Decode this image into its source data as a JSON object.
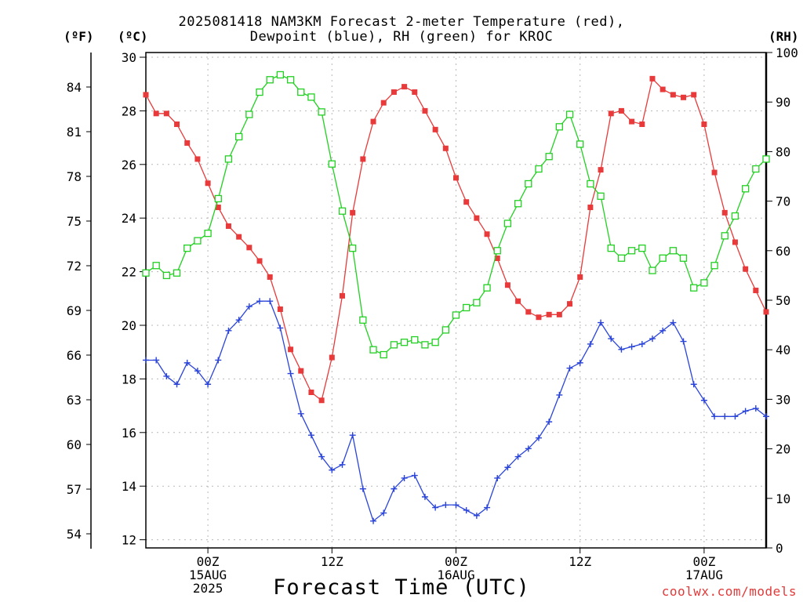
{
  "header": {
    "title_line1": "2025081418 NAM3KM Forecast 2-meter Temperature (red),",
    "title_line2": "Dewpoint (blue), RH (green) for KROC"
  },
  "units": {
    "f": "(ºF)",
    "c": "(ºC)",
    "rh": "(RH)"
  },
  "footer": {
    "xlabel": "Forecast Time (UTC)",
    "credit": "coolwx.com/models"
  },
  "chart_data": {
    "type": "line",
    "title": "2025081418 NAM3KM Forecast 2-meter Temperature (red), Dewpoint (blue), RH (green) for KROC",
    "xlabel": "Forecast Time (UTC)",
    "ylabel_left": "(ºC)",
    "ylabel_far_left": "(ºF)",
    "ylabel_right": "(RH)",
    "x_start_hour_utc": 18,
    "x_step_hours": 1,
    "xlim_hours": [
      0,
      60
    ],
    "x_tick_labels": [
      {
        "hour": 6,
        "lines": [
          "00Z",
          "15AUG",
          "2025"
        ]
      },
      {
        "hour": 18,
        "lines": [
          "12Z"
        ]
      },
      {
        "hour": 30,
        "lines": [
          "00Z",
          "16AUG"
        ]
      },
      {
        "hour": 42,
        "lines": [
          "12Z"
        ]
      },
      {
        "hour": 54,
        "lines": [
          "00Z",
          "17AUG"
        ]
      }
    ],
    "ylim_c": [
      11.6,
      30.1
    ],
    "yticks_c": [
      12,
      14,
      16,
      18,
      20,
      22,
      24,
      26,
      28,
      30
    ],
    "yticks_f": [
      54,
      57,
      60,
      63,
      66,
      69,
      72,
      75,
      78,
      81,
      84
    ],
    "ylim_rh": [
      0,
      100
    ],
    "yticks_rh": [
      0,
      10,
      20,
      30,
      40,
      50,
      60,
      70,
      80,
      90,
      100
    ],
    "grid": true,
    "series": [
      {
        "name": "Temperature",
        "color": "#e83a3a",
        "marker": "filled-square",
        "axis": "c",
        "values": [
          28.6,
          27.9,
          27.9,
          27.5,
          26.8,
          26.2,
          25.3,
          24.4,
          23.7,
          23.3,
          22.9,
          22.4,
          21.8,
          20.6,
          19.1,
          18.3,
          17.5,
          17.2,
          18.8,
          21.1,
          24.2,
          26.2,
          27.6,
          28.3,
          28.7,
          28.9,
          28.7,
          28.0,
          27.3,
          26.6,
          25.5,
          24.6,
          24.0,
          23.4,
          22.5,
          21.5,
          20.9,
          20.5,
          20.3,
          20.4,
          20.4,
          20.8,
          21.8,
          24.4,
          25.8,
          27.9,
          28.0,
          27.6,
          27.5,
          29.2,
          28.8,
          28.6,
          28.5,
          28.6,
          27.5,
          25.7,
          24.2,
          23.1,
          22.1,
          21.3,
          20.5
        ]
      },
      {
        "name": "Dewpoint",
        "color": "#2a44d9",
        "marker": "plus",
        "axis": "c",
        "values": [
          18.7,
          18.7,
          18.1,
          17.8,
          18.6,
          18.3,
          17.8,
          18.7,
          19.8,
          20.2,
          20.7,
          20.9,
          20.9,
          19.9,
          18.2,
          16.7,
          15.9,
          15.1,
          14.6,
          14.8,
          15.9,
          13.9,
          12.7,
          13.0,
          13.9,
          14.3,
          14.4,
          13.6,
          13.2,
          13.3,
          13.3,
          13.1,
          12.9,
          13.2,
          14.3,
          14.7,
          15.1,
          15.4,
          15.8,
          16.4,
          17.4,
          18.4,
          18.6,
          19.3,
          20.1,
          19.5,
          19.1,
          19.2,
          19.3,
          19.5,
          19.8,
          20.1,
          19.4,
          17.8,
          17.2,
          16.6,
          16.6,
          16.6,
          16.8,
          16.9,
          16.6
        ]
      },
      {
        "name": "RH",
        "color": "#22d022",
        "marker": "open-square",
        "axis": "rh",
        "values": [
          55.5,
          57.0,
          55.0,
          55.5,
          60.5,
          62.0,
          63.5,
          70.5,
          78.5,
          83.0,
          87.5,
          92.0,
          94.5,
          95.5,
          94.5,
          92.0,
          91.0,
          88.0,
          77.5,
          68.0,
          60.5,
          46.0,
          40.0,
          39.0,
          41.0,
          41.5,
          42.0,
          41.0,
          41.5,
          44.0,
          47.0,
          48.5,
          49.5,
          52.5,
          60.0,
          65.5,
          69.5,
          73.5,
          76.5,
          79.0,
          85.0,
          87.5,
          81.5,
          73.5,
          71.0,
          60.5,
          58.5,
          60.0,
          60.5,
          56.0,
          58.5,
          60.0,
          58.5,
          52.5,
          53.5,
          57.0,
          63.0,
          67.0,
          72.5,
          76.5,
          78.5
        ]
      }
    ]
  }
}
